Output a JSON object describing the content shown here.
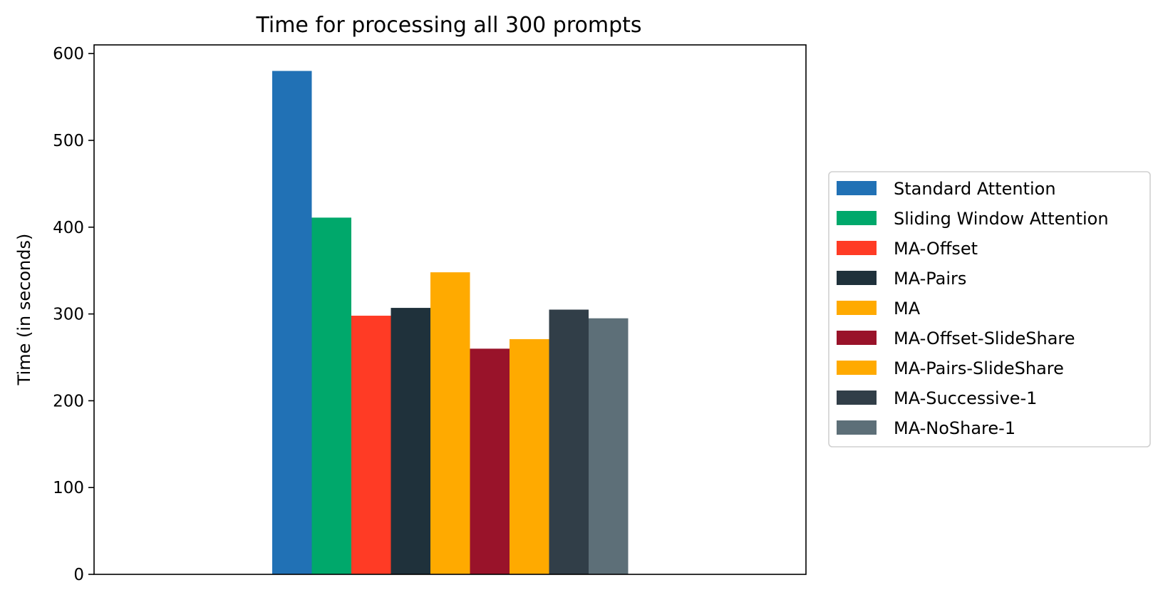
{
  "chart_data": {
    "type": "bar",
    "title": "Time for processing all 300 prompts",
    "xlabel": "",
    "ylabel": "Time (in seconds)",
    "ylim": [
      0,
      610
    ],
    "yticks": [
      0,
      100,
      200,
      300,
      400,
      500,
      600
    ],
    "grid": false,
    "legend_position": "right",
    "series": [
      {
        "name": "Standard Attention",
        "value": 580,
        "color": "#2171b5"
      },
      {
        "name": "Sliding Window Attention",
        "value": 411,
        "color": "#00a86b"
      },
      {
        "name": "MA-Offset",
        "value": 298,
        "color": "#ff3b25"
      },
      {
        "name": "MA-Pairs",
        "value": 307,
        "color": "#1f313b"
      },
      {
        "name": "MA",
        "value": 348,
        "color": "#ffaa00"
      },
      {
        "name": "MA-Offset-SlideShare",
        "value": 260,
        "color": "#99132a"
      },
      {
        "name": "MA-Pairs-SlideShare",
        "value": 271,
        "color": "#ffaa00"
      },
      {
        "name": "MA-Successive-1",
        "value": 305,
        "color": "#313e48"
      },
      {
        "name": "MA-NoShare-1",
        "value": 295,
        "color": "#5d6f78"
      }
    ]
  }
}
